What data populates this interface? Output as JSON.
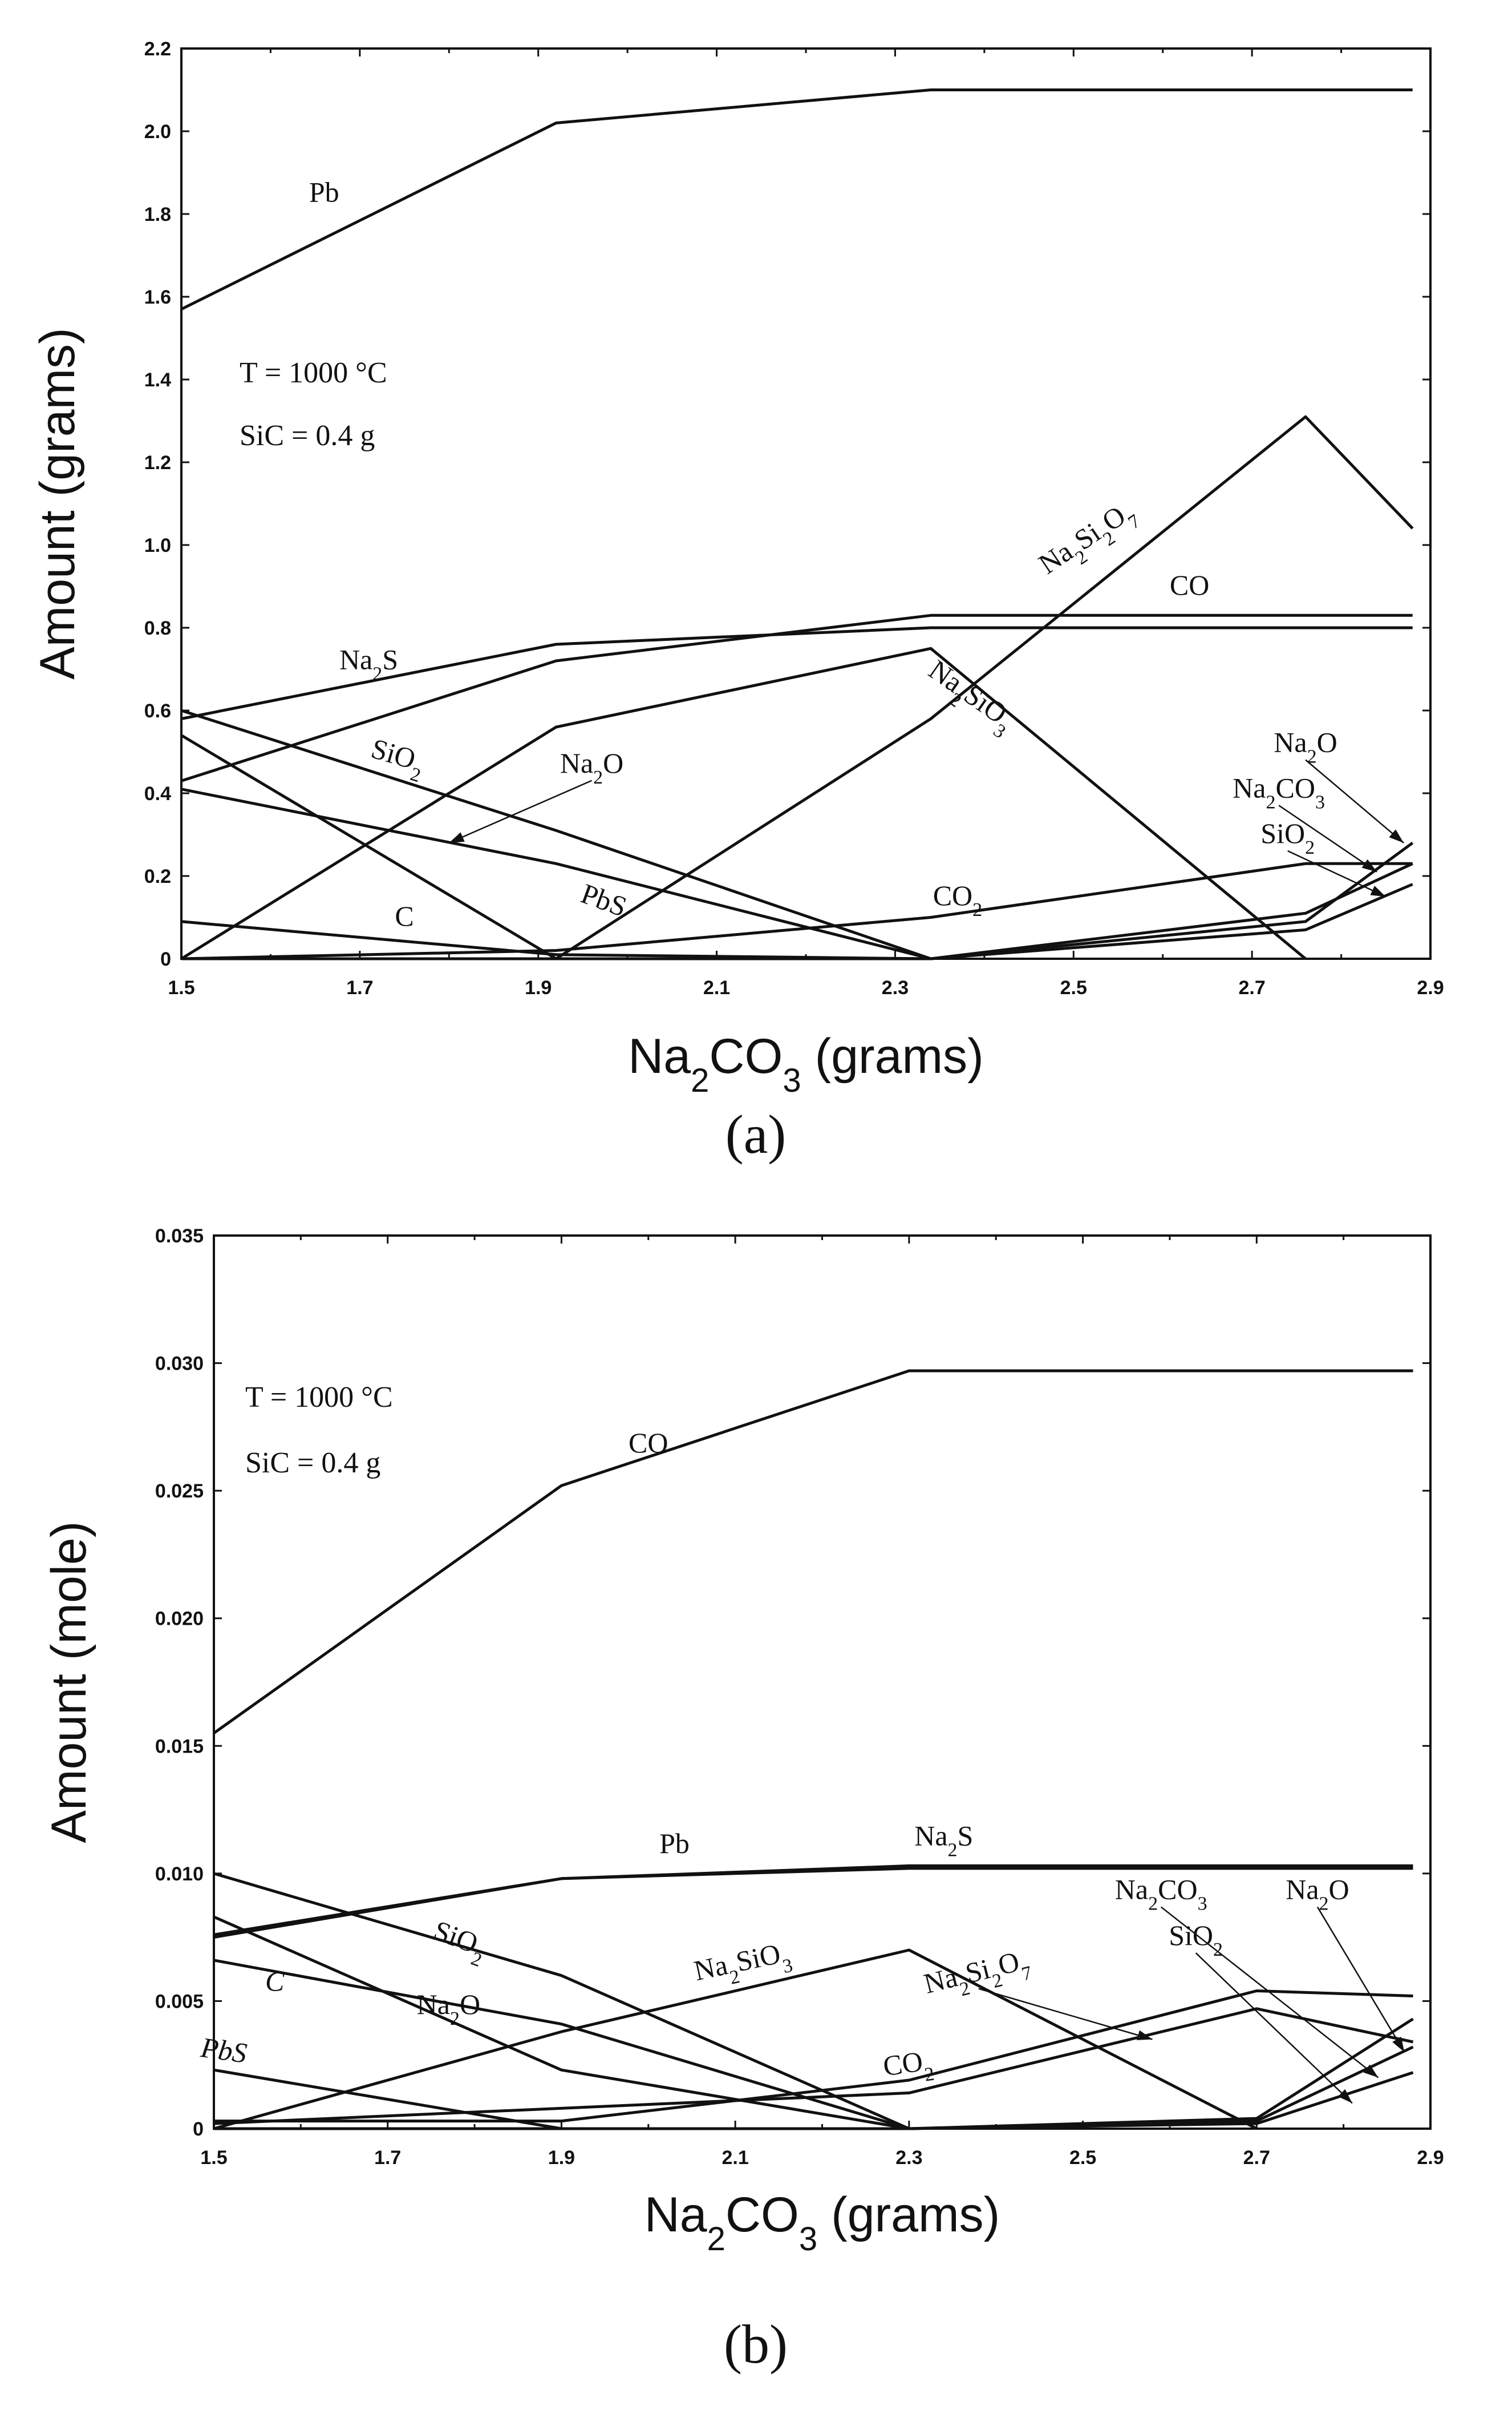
{
  "chart_data": [
    {
      "type": "line",
      "caption": "(a)",
      "xlabel": "Na2CO3 (grams)",
      "ylabel": "Amount (grams)",
      "xlim": [
        1.5,
        2.9
      ],
      "ylim": [
        0,
        2.2
      ],
      "xticks": [
        "1.5",
        "1.7",
        "1.9",
        "2.1",
        "2.3",
        "2.5",
        "2.7",
        "2.9"
      ],
      "yticks": [
        "0",
        "0.2",
        "0.4",
        "0.6",
        "0.8",
        "1.0",
        "1.2",
        "1.4",
        "1.6",
        "1.8",
        "2.0",
        "2.2"
      ],
      "annotations": [
        "T = 1000 °C",
        "SiC = 0.4 g"
      ],
      "series": [
        {
          "name": "Pb",
          "x": [
            1.5,
            1.92,
            2.34,
            2.88
          ],
          "y": [
            1.57,
            2.02,
            2.1,
            2.1
          ]
        },
        {
          "name": "CO",
          "x": [
            1.5,
            1.92,
            2.34,
            2.88
          ],
          "y": [
            0.43,
            0.72,
            0.83,
            0.83
          ]
        },
        {
          "name": "Na2S",
          "x": [
            1.5,
            1.92,
            2.34,
            2.88
          ],
          "y": [
            0.58,
            0.76,
            0.8,
            0.8
          ]
        },
        {
          "name": "Na2Si2O7",
          "x": [
            1.5,
            1.92,
            2.34,
            2.76,
            2.88
          ],
          "y": [
            0,
            0,
            0.58,
            1.31,
            1.04
          ]
        },
        {
          "name": "Na2SiO3",
          "x": [
            1.5,
            1.92,
            2.34,
            2.76
          ],
          "y": [
            0,
            0.56,
            0.75,
            0
          ]
        },
        {
          "name": "SiO2",
          "x": [
            1.5,
            1.92,
            2.34,
            2.76,
            2.88
          ],
          "y": [
            0.6,
            0.31,
            0,
            0.11,
            0.23
          ]
        },
        {
          "name": "Na2O",
          "x": [
            1.5,
            1.92,
            2.34,
            2.76,
            2.88
          ],
          "y": [
            0.41,
            0.23,
            0,
            0.09,
            0.28
          ]
        },
        {
          "name": "PbS",
          "x": [
            1.5,
            1.92,
            2.34
          ],
          "y": [
            0.54,
            0,
            0
          ]
        },
        {
          "name": "C",
          "x": [
            1.5,
            1.92,
            2.34
          ],
          "y": [
            0.09,
            0.01,
            0
          ]
        },
        {
          "name": "CO2",
          "x": [
            1.5,
            1.92,
            2.34,
            2.76,
            2.88
          ],
          "y": [
            0,
            0.02,
            0.1,
            0.23,
            0.23
          ]
        },
        {
          "name": "Na2CO3",
          "x": [
            1.5,
            2.34,
            2.76,
            2.88
          ],
          "y": [
            0,
            0,
            0.07,
            0.18
          ]
        }
      ],
      "labels": [
        {
          "series": "Pb",
          "text": "Pb",
          "at": [
            1.66,
            1.83
          ]
        },
        {
          "series": "Na2S",
          "text": "Na₂S",
          "at": [
            1.71,
            0.7
          ]
        },
        {
          "series": "SiO2",
          "text": "SiO₂",
          "at": [
            1.74,
            0.47
          ],
          "rotate": 16
        },
        {
          "series": "Na2O",
          "text": "Na₂O",
          "at": [
            1.96,
            0.45
          ],
          "arrow_to": [
            1.8,
            0.28
          ]
        },
        {
          "series": "PbS",
          "text": "PbS",
          "at": [
            1.97,
            0.12
          ],
          "rotate": 20
        },
        {
          "series": "C",
          "text": "C",
          "at": [
            1.75,
            0.08
          ]
        },
        {
          "series": "CO2",
          "text": "CO₂",
          "at": [
            2.37,
            0.13
          ]
        },
        {
          "series": "CO",
          "text": "CO",
          "at": [
            2.63,
            0.88
          ]
        },
        {
          "series": "Na2Si2O7",
          "text": "Na₂Si₂O₇",
          "at": [
            2.52,
            1.0
          ],
          "rotate": -34
        },
        {
          "series": "Na2SiO3",
          "text": "Na₂SiO₃",
          "at": [
            2.38,
            0.62
          ],
          "rotate": 35
        },
        {
          "series": "Na2O",
          "text": "Na₂O",
          "at": [
            2.76,
            0.5
          ],
          "arrow_to": [
            2.87,
            0.28
          ]
        },
        {
          "series": "Na2CO3",
          "text": "Na₂CO₃",
          "at": [
            2.73,
            0.39
          ],
          "arrow_to": [
            2.84,
            0.21
          ]
        },
        {
          "series": "SiO2",
          "text": "SiO₂",
          "at": [
            2.74,
            0.28
          ],
          "arrow_to": [
            2.85,
            0.15
          ]
        }
      ]
    },
    {
      "type": "line",
      "caption": "(b)",
      "xlabel": "Na2CO3 (grams)",
      "ylabel": "Amount (mole)",
      "xlim": [
        1.5,
        2.9
      ],
      "ylim": [
        0,
        0.035
      ],
      "xticks": [
        "1.5",
        "1.7",
        "1.9",
        "2.1",
        "2.3",
        "2.5",
        "2.7",
        "2.9"
      ],
      "yticks": [
        "0",
        "0.005",
        "0.010",
        "0.015",
        "0.020",
        "0.025",
        "0.030",
        "0.035"
      ],
      "annotations": [
        "T = 1000 °C",
        "SiC = 0.4 g"
      ],
      "series": [
        {
          "name": "CO",
          "x": [
            1.5,
            1.9,
            2.3,
            2.88
          ],
          "y": [
            0.0155,
            0.0252,
            0.0297,
            0.0297
          ]
        },
        {
          "name": "Pb",
          "x": [
            1.5,
            1.9,
            2.3,
            2.88
          ],
          "y": [
            0.0075,
            0.0098,
            0.0102,
            0.0102
          ]
        },
        {
          "name": "Na2S",
          "x": [
            1.5,
            1.9,
            2.3,
            2.88
          ],
          "y": [
            0.0076,
            0.0098,
            0.0103,
            0.0103
          ]
        },
        {
          "name": "SiO2",
          "x": [
            1.5,
            1.9,
            2.3,
            2.7,
            2.88
          ],
          "y": [
            0.01,
            0.006,
            0,
            0.0004,
            0.0043
          ]
        },
        {
          "name": "C",
          "x": [
            1.5,
            1.9,
            2.3
          ],
          "y": [
            0.0066,
            0.0041,
            0
          ]
        },
        {
          "name": "Na2O",
          "x": [
            1.5,
            1.9,
            2.3,
            2.7,
            2.88
          ],
          "y": [
            0.0083,
            0.0023,
            0,
            0.0003,
            0.0032
          ]
        },
        {
          "name": "PbS",
          "x": [
            1.5,
            1.9,
            2.3
          ],
          "y": [
            0.0023,
            0,
            0
          ]
        },
        {
          "name": "Na2SiO3",
          "x": [
            1.5,
            1.9,
            2.3,
            2.7
          ],
          "y": [
            0,
            0.0038,
            0.007,
            0
          ]
        },
        {
          "name": "Na2Si2O7",
          "x": [
            1.5,
            2.3,
            2.7,
            2.88
          ],
          "y": [
            0.0002,
            0.0014,
            0.0047,
            0.0034
          ]
        },
        {
          "name": "CO2",
          "x": [
            1.5,
            1.9,
            2.3,
            2.7,
            2.88
          ],
          "y": [
            0.0003,
            0.0003,
            0.0019,
            0.0054,
            0.0052
          ]
        },
        {
          "name": "Na2CO3",
          "x": [
            1.5,
            2.3,
            2.7,
            2.88
          ],
          "y": [
            0,
            0,
            0.0002,
            0.0022
          ]
        }
      ],
      "labels": [
        {
          "series": "CO",
          "text": "CO",
          "at": [
            2.0,
            0.0265
          ]
        },
        {
          "series": "Pb",
          "text": "Pb",
          "at": [
            2.03,
            0.0108
          ]
        },
        {
          "series": "Na2S",
          "text": "Na₂S",
          "at": [
            2.34,
            0.0111
          ]
        },
        {
          "series": "SiO2",
          "text": "SiO₂",
          "at": [
            1.78,
            0.0071
          ],
          "rotate": 20
        },
        {
          "series": "C",
          "text": "C",
          "at": [
            1.57,
            0.0054
          ],
          "italic": true
        },
        {
          "series": "Na2O",
          "text": "Na₂O",
          "at": [
            1.77,
            0.0045
          ]
        },
        {
          "series": "PbS",
          "text": "PbS",
          "at": [
            1.51,
            0.0027
          ],
          "italic": true,
          "rotate": 8
        },
        {
          "series": "Na2SiO3",
          "text": "Na₂SiO₃",
          "at": [
            2.11,
            0.0062
          ],
          "rotate": -12
        },
        {
          "series": "Na2Si2O7",
          "text": "Na₂Si₂O₇",
          "at": [
            2.38,
            0.0058
          ],
          "rotate": -14,
          "arrow_to": [
            2.58,
            0.0035
          ]
        },
        {
          "series": "CO2",
          "text": "CO₂",
          "at": [
            2.3,
            0.0022
          ],
          "rotate": -8
        },
        {
          "series": "Na2CO3",
          "text": "Na₂CO₃",
          "at": [
            2.59,
            0.009
          ],
          "arrow_to": [
            2.84,
            0.002
          ]
        },
        {
          "series": "SiO2",
          "text": "SiO₂",
          "at": [
            2.63,
            0.0072
          ],
          "arrow_to": [
            2.81,
            0.001
          ]
        },
        {
          "series": "Na2O",
          "text": "Na₂O",
          "at": [
            2.77,
            0.009
          ],
          "arrow_to": [
            2.87,
            0.003
          ]
        }
      ]
    }
  ]
}
